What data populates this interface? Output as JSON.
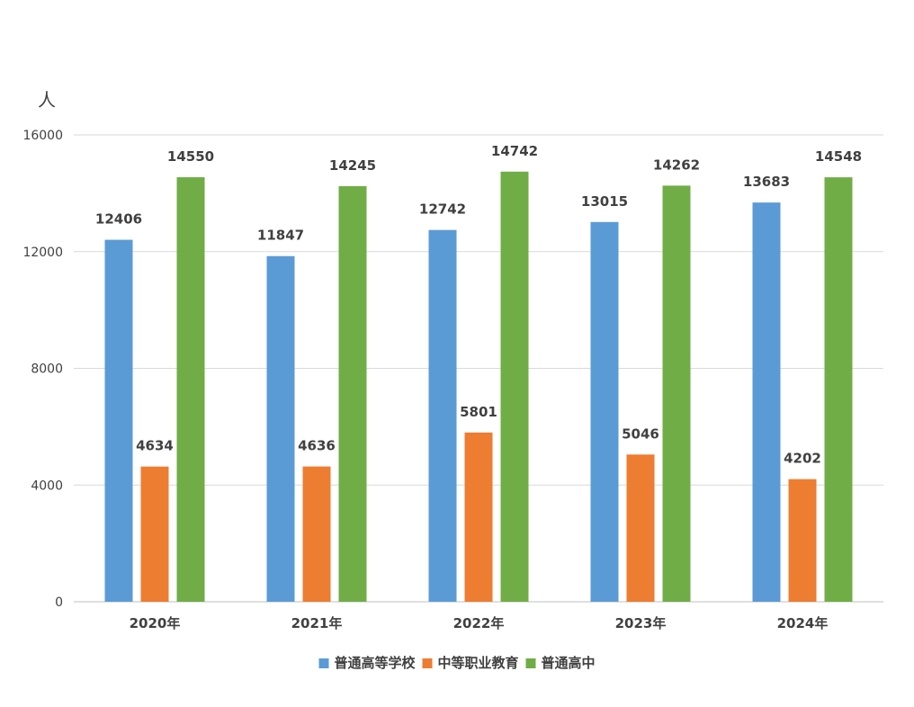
{
  "chart_data": {
    "type": "bar",
    "ylabel": "人",
    "categories": [
      "2020年",
      "2021年",
      "2022年",
      "2023年",
      "2024年"
    ],
    "series": [
      {
        "name": "普通高等学校",
        "color": "#5B9BD5",
        "values": [
          12406,
          11847,
          12742,
          13015,
          13683
        ]
      },
      {
        "name": "中等职业教育",
        "color": "#ED7D31",
        "values": [
          4634,
          4636,
          5801,
          5046,
          4202
        ]
      },
      {
        "name": "普通高中",
        "color": "#70AD47",
        "values": [
          14550,
          14245,
          14742,
          14262,
          14548
        ]
      }
    ],
    "ylim": [
      0,
      16000
    ],
    "yticks": [
      0,
      4000,
      8000,
      12000,
      16000
    ],
    "grid": true,
    "legend": "bottom-center",
    "gridline_color": "#D9D9D9"
  }
}
